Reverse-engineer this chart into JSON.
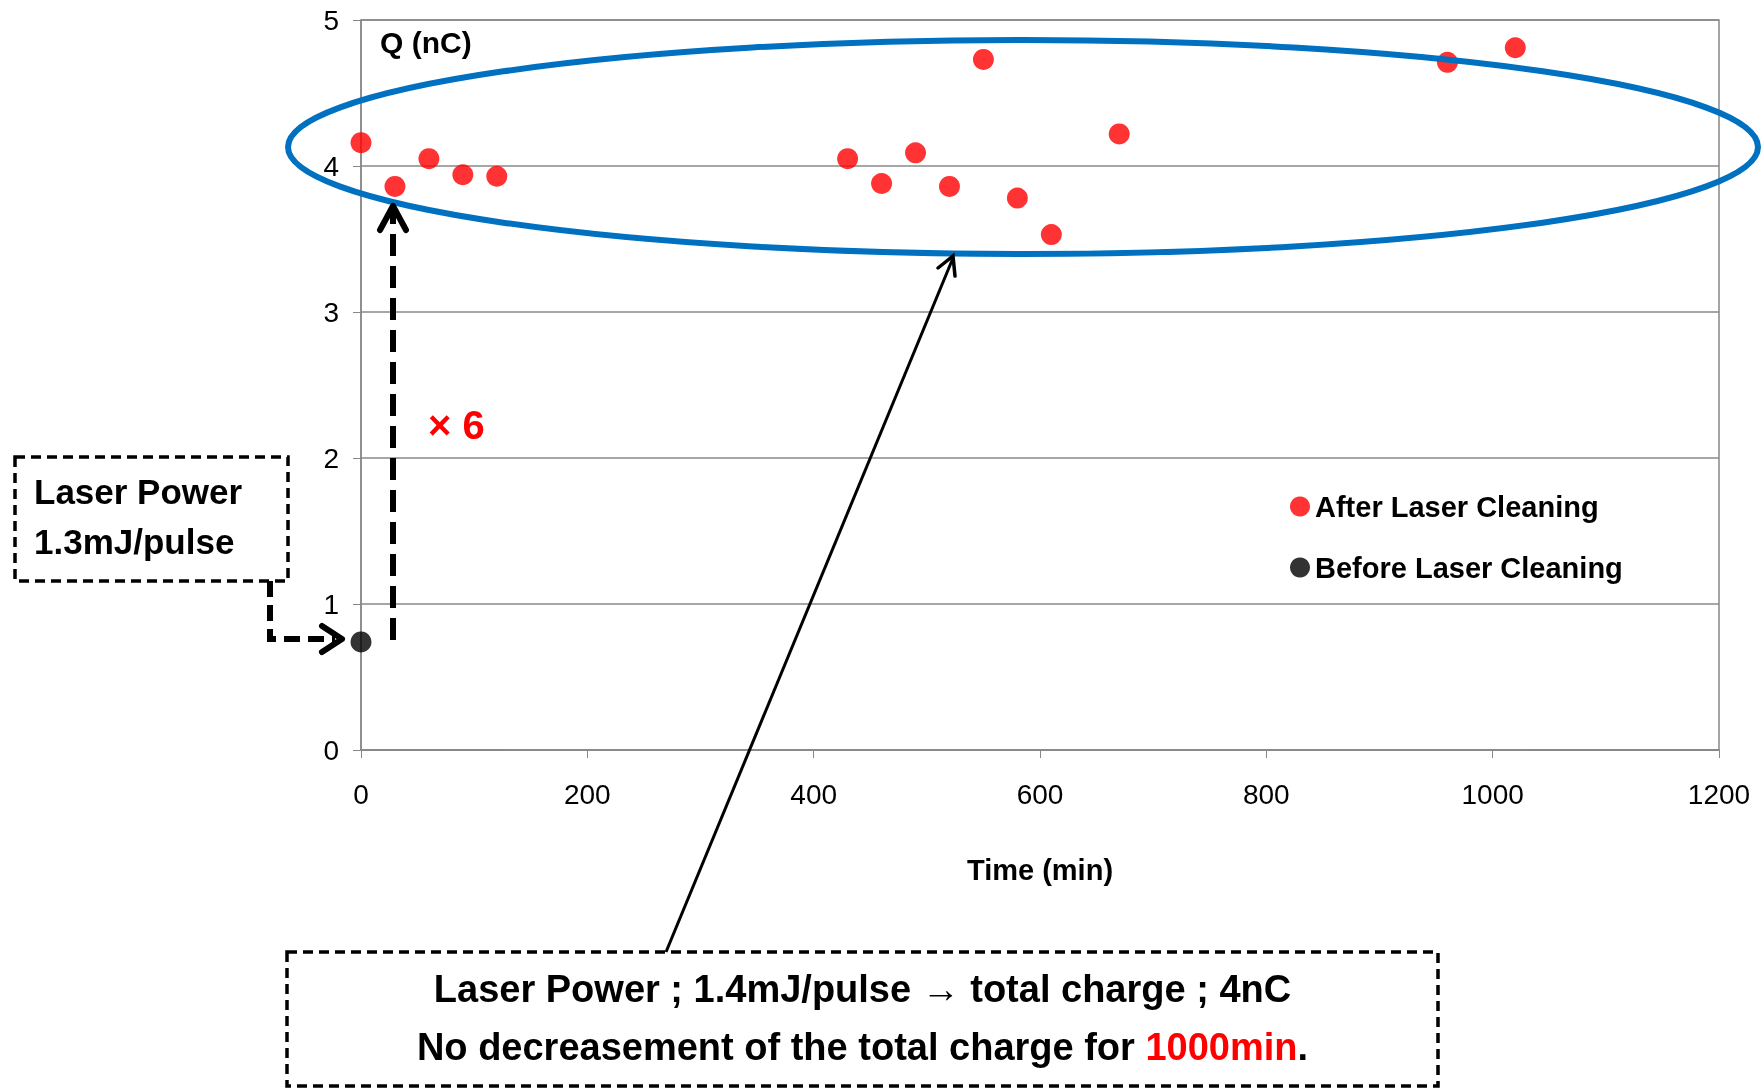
{
  "chart_data": {
    "type": "scatter",
    "xlabel": "Time (min)",
    "ylabel": "Q (nC)",
    "series": [
      {
        "name": "After Laser Cleaning",
        "color": "#ff0000",
        "x": [
          0,
          30,
          60,
          90,
          120,
          430,
          460,
          490,
          520,
          550,
          580,
          610,
          670,
          960,
          1020
        ],
        "values": [
          4.16,
          3.86,
          4.05,
          3.94,
          3.93,
          4.05,
          3.88,
          4.09,
          3.86,
          4.73,
          3.78,
          3.53,
          4.22,
          4.71,
          4.81
        ]
      },
      {
        "name": "Before Laser Cleaning",
        "color": "#000000",
        "x": [
          0
        ],
        "values": [
          0.74
        ]
      }
    ],
    "xlim": [
      0,
      1200
    ],
    "xticks": [
      0,
      200,
      400,
      600,
      800,
      1000,
      1200
    ],
    "ylim": [
      0,
      5
    ],
    "yticks": [
      0,
      1,
      2,
      3,
      4,
      5
    ],
    "grid": "y",
    "legend": "right",
    "marker": "circle",
    "annotations": [
      "Laser Power",
      "1.3mJ/pulse",
      "× 6",
      "Laser Power ; 1.4mJ/pulse → total charge ; 4nC",
      "No decreasement of the total charge for ",
      "1000min",
      "."
    ]
  }
}
